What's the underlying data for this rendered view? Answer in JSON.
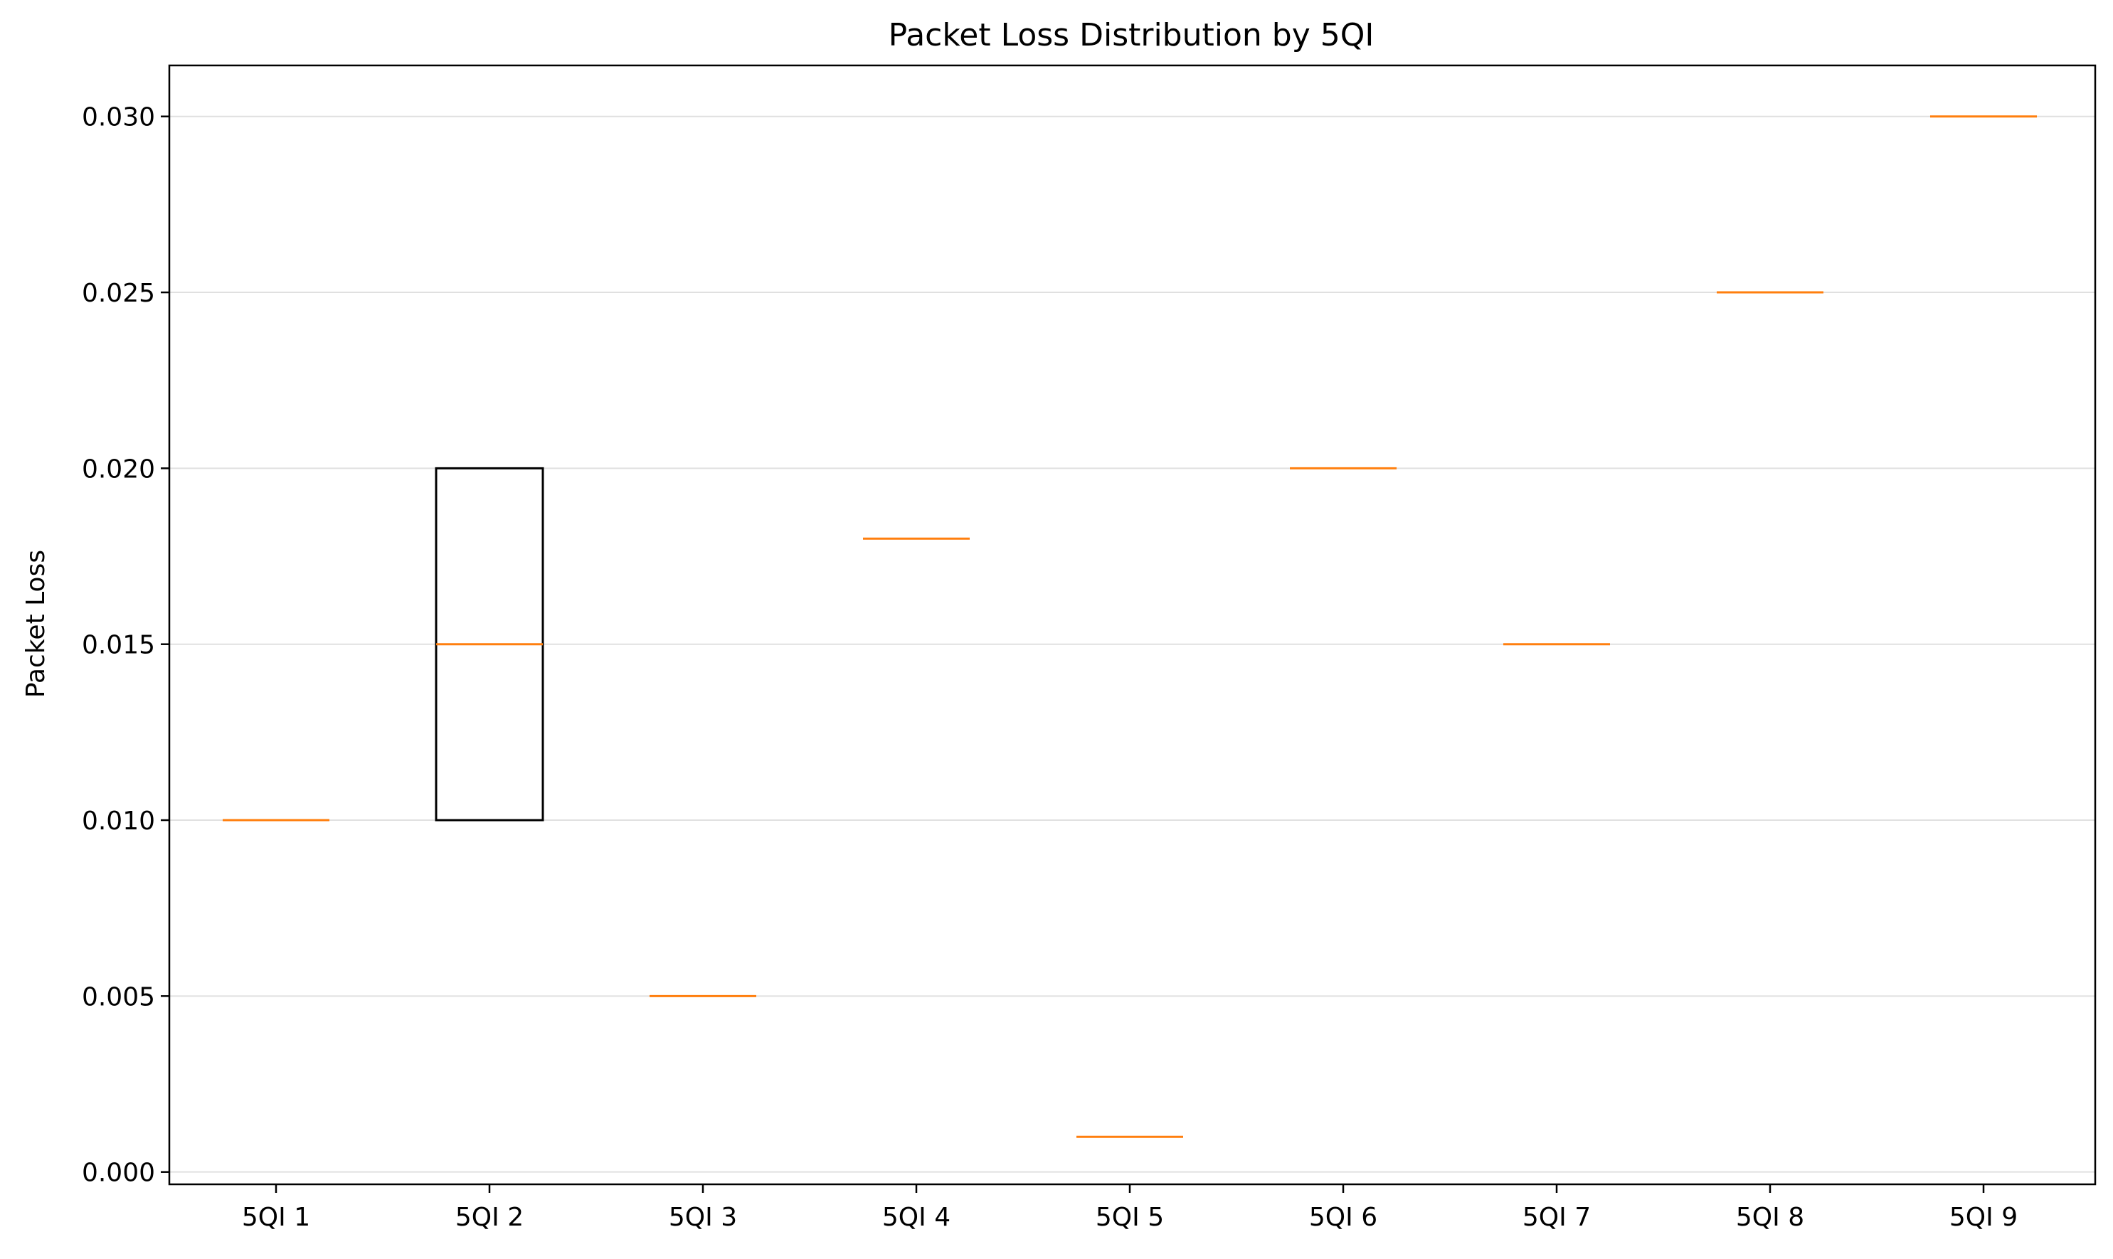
{
  "chart_data": {
    "type": "boxplot",
    "title": "Packet Loss Distribution by 5QI",
    "xlabel": "",
    "ylabel": "Packet Loss",
    "ylim": [
      -0.00035,
      0.03145
    ],
    "yticks": [
      0.0,
      0.005,
      0.01,
      0.015,
      0.02,
      0.025,
      0.03
    ],
    "ytick_labels": [
      "0.000",
      "0.005",
      "0.010",
      "0.015",
      "0.020",
      "0.025",
      "0.030"
    ],
    "grid": "y-axis horizontal gridlines",
    "legend": "none",
    "categories": [
      "5QI 1",
      "5QI 2",
      "5QI 3",
      "5QI 4",
      "5QI 5",
      "5QI 6",
      "5QI 7",
      "5QI 8",
      "5QI 9"
    ],
    "boxes": [
      {
        "label": "5QI 1",
        "q1": 0.01,
        "median": 0.01,
        "q3": 0.01,
        "whisker_low": 0.01,
        "whisker_high": 0.01
      },
      {
        "label": "5QI 2",
        "q1": 0.01,
        "median": 0.015,
        "q3": 0.02,
        "whisker_low": 0.01,
        "whisker_high": 0.02
      },
      {
        "label": "5QI 3",
        "q1": 0.005,
        "median": 0.005,
        "q3": 0.005,
        "whisker_low": 0.005,
        "whisker_high": 0.005
      },
      {
        "label": "5QI 4",
        "q1": 0.018,
        "median": 0.018,
        "q3": 0.018,
        "whisker_low": 0.018,
        "whisker_high": 0.018
      },
      {
        "label": "5QI 5",
        "q1": 0.001,
        "median": 0.001,
        "q3": 0.001,
        "whisker_low": 0.001,
        "whisker_high": 0.001
      },
      {
        "label": "5QI 6",
        "q1": 0.02,
        "median": 0.02,
        "q3": 0.02,
        "whisker_low": 0.02,
        "whisker_high": 0.02
      },
      {
        "label": "5QI 7",
        "q1": 0.015,
        "median": 0.015,
        "q3": 0.015,
        "whisker_low": 0.015,
        "whisker_high": 0.015
      },
      {
        "label": "5QI 8",
        "q1": 0.025,
        "median": 0.025,
        "q3": 0.025,
        "whisker_low": 0.025,
        "whisker_high": 0.025
      },
      {
        "label": "5QI 9",
        "q1": 0.03,
        "median": 0.03,
        "q3": 0.03,
        "whisker_low": 0.03,
        "whisker_high": 0.03
      }
    ],
    "colors": {
      "box": "#000000",
      "median": "#ff7f0e",
      "grid": "#e0e0e0",
      "axis": "#000000"
    }
  }
}
